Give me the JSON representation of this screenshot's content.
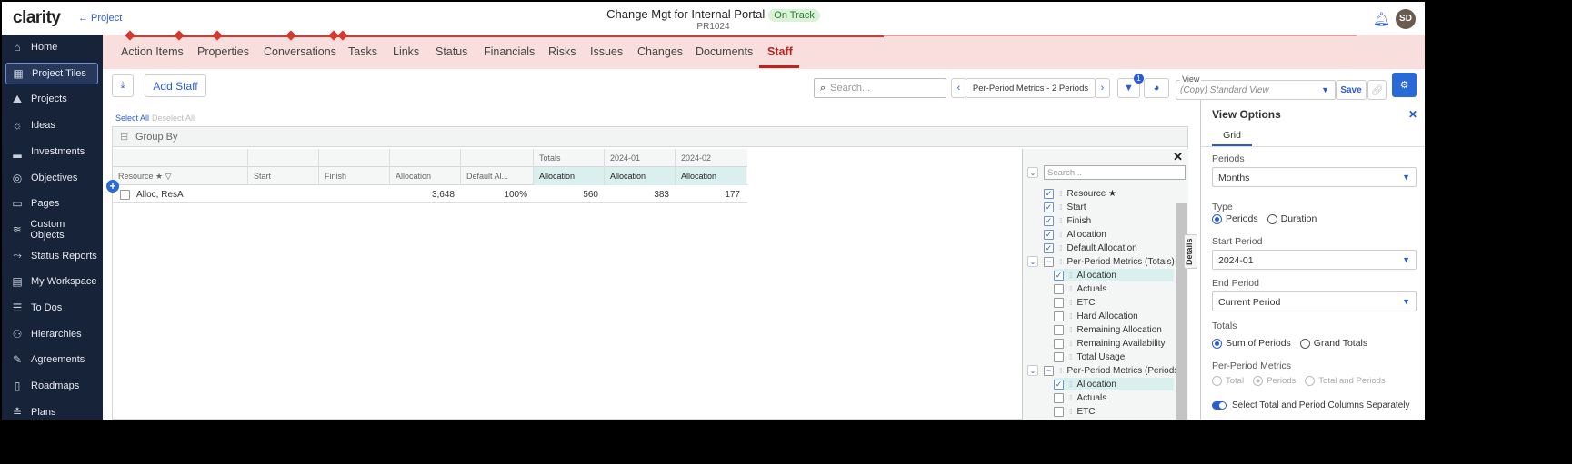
{
  "header": {
    "logo": "clarity",
    "back_link": "← Project",
    "title": "Change Mgt for Internal Portal",
    "status": "On Track",
    "project_id": "PR1024",
    "avatar_initials": "SD"
  },
  "colors": {
    "accent": "#2a5bd7",
    "sidebar": "#172338",
    "tab_band": "#f9dede",
    "active_tab": "#b3261e",
    "status_bg": "#d9f2d9"
  },
  "sidebar": {
    "items": [
      {
        "label": "Home",
        "icon": "⌂"
      },
      {
        "label": "Project Tiles",
        "icon": "▦"
      },
      {
        "label": "Projects",
        "icon": "⛰"
      },
      {
        "label": "Ideas",
        "icon": "☼"
      },
      {
        "label": "Investments",
        "icon": "▂"
      },
      {
        "label": "Objectives",
        "icon": "◎"
      },
      {
        "label": "Pages",
        "icon": "▭"
      },
      {
        "label": "Custom Objects",
        "icon": "≋"
      },
      {
        "label": "Status Reports",
        "icon": "⤳"
      },
      {
        "label": "My Workspace",
        "icon": "▤"
      },
      {
        "label": "To Dos",
        "icon": "☰"
      },
      {
        "label": "Hierarchies",
        "icon": "⚇"
      },
      {
        "label": "Agreements",
        "icon": "✎"
      },
      {
        "label": "Roadmaps",
        "icon": "▯"
      },
      {
        "label": "Plans",
        "icon": "≛"
      }
    ]
  },
  "tabs": [
    "Action Items",
    "Properties",
    "Conversations",
    "Tasks",
    "Links",
    "Status",
    "Financials",
    "Risks",
    "Issues",
    "Changes",
    "Documents",
    "Staff"
  ],
  "toolbar": {
    "add_staff": "Add Staff",
    "search_placeholder": "Search...",
    "metrics_label": "Per-Period Metrics - 2 Periods",
    "filter_count": "1",
    "view_label": "View",
    "view_value": "(Copy) Standard View",
    "save": "Save"
  },
  "grid": {
    "select_all": "Select All",
    "deselect_all": "Deselect All",
    "group_by": "Group By",
    "group_headers": [
      "Totals",
      "2024-01",
      "2024-02"
    ],
    "columns": [
      "Resource",
      "Start",
      "Finish",
      "Allocation",
      "Default Al...",
      "Allocation",
      "Allocation",
      "Allocation"
    ],
    "rows": [
      {
        "resource": "Alloc, ResA",
        "start": "",
        "finish": "",
        "allocation": "3,648",
        "default_allocation": "100%",
        "totals_allocation": "560",
        "p1_allocation": "383",
        "p2_allocation": "177"
      }
    ]
  },
  "column_panel": {
    "search_placeholder": "Search...",
    "details_tab": "Details",
    "items": [
      {
        "label": "Resource ★",
        "checked": true,
        "level": 0
      },
      {
        "label": "Start",
        "checked": true,
        "level": 0
      },
      {
        "label": "Finish",
        "checked": true,
        "level": 0
      },
      {
        "label": "Allocation",
        "checked": true,
        "level": 0
      },
      {
        "label": "Default Allocation",
        "checked": true,
        "level": 0
      },
      {
        "label": "Per-Period Metrics (Totals)",
        "group": true
      },
      {
        "label": "Allocation",
        "checked": true,
        "level": 1
      },
      {
        "label": "Actuals",
        "checked": false,
        "level": 1
      },
      {
        "label": "ETC",
        "checked": false,
        "level": 1
      },
      {
        "label": "Hard Allocation",
        "checked": false,
        "level": 1
      },
      {
        "label": "Remaining Allocation",
        "checked": false,
        "level": 1
      },
      {
        "label": "Remaining Availability",
        "checked": false,
        "level": 1
      },
      {
        "label": "Total Usage",
        "checked": false,
        "level": 1
      },
      {
        "label": "Per-Period Metrics (Periods",
        "group": true
      },
      {
        "label": "Allocation",
        "checked": true,
        "level": 1
      },
      {
        "label": "Actuals",
        "checked": false,
        "level": 1
      },
      {
        "label": "ETC",
        "checked": false,
        "level": 1
      }
    ]
  },
  "view_options": {
    "title": "View Options",
    "tab": "Grid",
    "periods_label": "Periods",
    "periods_value": "Months",
    "type_label": "Type",
    "type_options": [
      "Periods",
      "Duration"
    ],
    "start_label": "Start Period",
    "start_value": "2024-01",
    "end_label": "End Period",
    "end_value": "Current Period",
    "totals_label": "Totals",
    "totals_options": [
      "Sum of Periods",
      "Grand Totals"
    ],
    "ppm_label": "Per-Period Metrics",
    "ppm_options": [
      "Total",
      "Periods",
      "Total and Periods"
    ],
    "toggle_label": "Select Total and Period Columns Separately",
    "toggle_on": true
  }
}
